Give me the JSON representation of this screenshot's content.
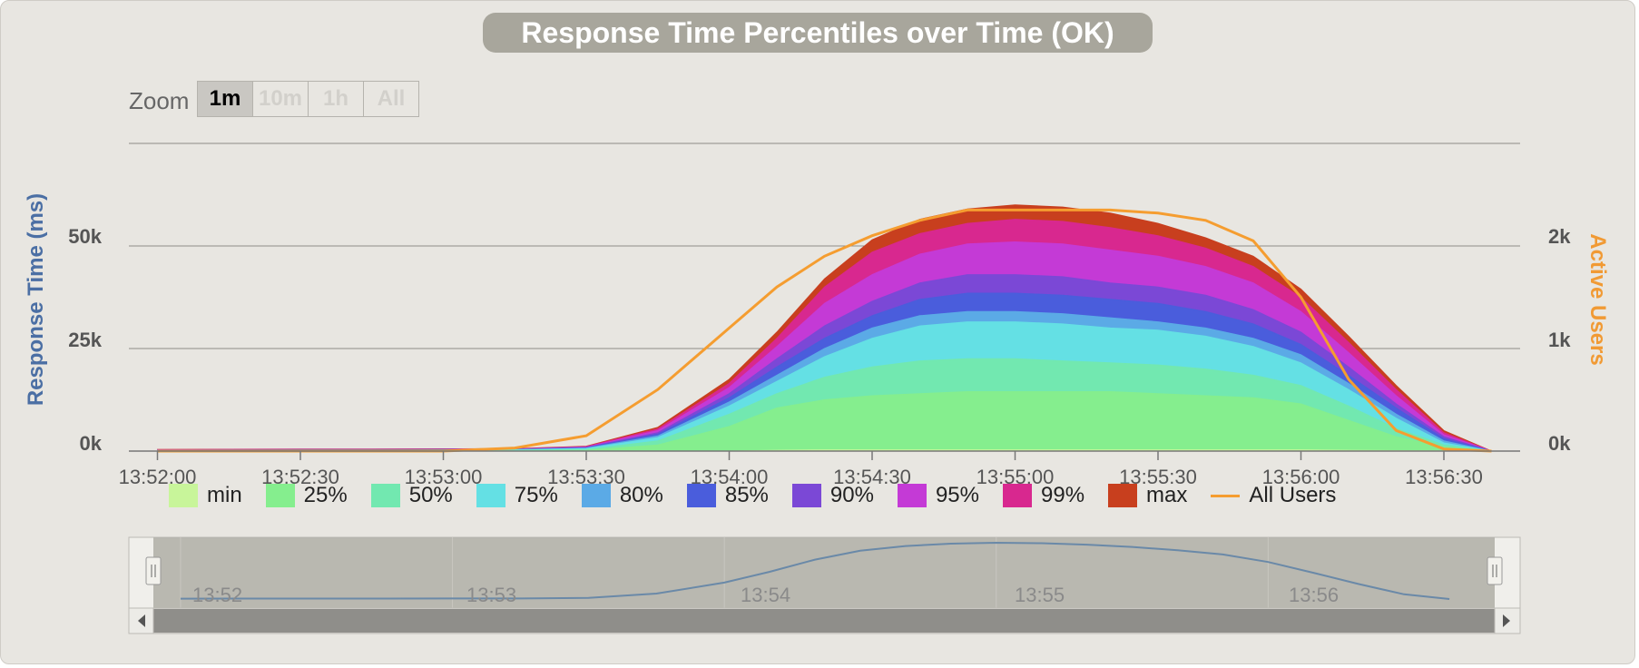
{
  "title": "Response Time Percentiles over Time (OK)",
  "zoom": {
    "label": "Zoom",
    "buttons": [
      "1m",
      "10m",
      "1h",
      "All"
    ],
    "active": "1m"
  },
  "axes": {
    "y_left_title": "Response Time (ms)",
    "y_right_title": "Active Users",
    "y_left_ticks": [
      "0k",
      "25k",
      "50k"
    ],
    "y_right_ticks": [
      "0k",
      "1k",
      "2k"
    ]
  },
  "navigator": {
    "labels": [
      "13:52",
      "13:53",
      "13:54",
      "13:55",
      "13:56"
    ]
  },
  "chart_data": {
    "type": "area",
    "title": "Response Time Percentiles over Time (OK)",
    "ylabel": "Response Time (ms)",
    "y2label": "Active Users",
    "ylim": [
      0,
      75000
    ],
    "y2lim": [
      0,
      3000
    ],
    "grid": true,
    "legend_position": "bottom",
    "x": [
      "13:52:00",
      "13:52:15",
      "13:52:30",
      "13:52:45",
      "13:53:00",
      "13:53:15",
      "13:53:30",
      "13:53:45",
      "13:54:00",
      "13:54:10",
      "13:54:20",
      "13:54:30",
      "13:54:40",
      "13:54:50",
      "13:55:00",
      "13:55:10",
      "13:55:20",
      "13:55:30",
      "13:55:40",
      "13:55:50",
      "13:56:00",
      "13:56:10",
      "13:56:20",
      "13:56:30",
      "13:56:40"
    ],
    "x_ticks": [
      "13:52:00",
      "13:52:30",
      "13:53:00",
      "13:53:30",
      "13:54:00",
      "13:54:30",
      "13:55:00",
      "13:55:30",
      "13:56:00",
      "13:56:30"
    ],
    "series": [
      {
        "name": "min",
        "color": "#c8f59a",
        "values": [
          0,
          0,
          0,
          0,
          0,
          0,
          0,
          0,
          0,
          200,
          300,
          300,
          300,
          300,
          300,
          300,
          300,
          300,
          300,
          300,
          300,
          200,
          100,
          50,
          0
        ]
      },
      {
        "name": "25%",
        "color": "#85ee8e",
        "values": [
          0,
          0,
          0,
          0,
          0,
          0,
          200,
          1500,
          6000,
          10500,
          12500,
          13500,
          14000,
          14500,
          14500,
          14500,
          14500,
          14000,
          13500,
          13000,
          11500,
          7500,
          3500,
          1000,
          0
        ]
      },
      {
        "name": "50%",
        "color": "#72e8b0",
        "values": [
          50,
          80,
          100,
          100,
          150,
          200,
          400,
          2500,
          9000,
          14000,
          18000,
          20500,
          22000,
          22500,
          22500,
          22000,
          21500,
          21000,
          20000,
          18500,
          16000,
          11000,
          5500,
          1500,
          0
        ]
      },
      {
        "name": "75%",
        "color": "#64e0e4",
        "values": [
          100,
          150,
          200,
          200,
          250,
          300,
          600,
          3300,
          11000,
          17000,
          23000,
          27500,
          30500,
          31500,
          31500,
          31000,
          30000,
          29500,
          28000,
          25500,
          21500,
          15000,
          8000,
          2000,
          0
        ]
      },
      {
        "name": "80%",
        "color": "#5baae6",
        "values": [
          150,
          200,
          250,
          250,
          300,
          350,
          700,
          3700,
          12000,
          18500,
          25000,
          30000,
          33000,
          34000,
          34000,
          33500,
          32500,
          31500,
          30000,
          27500,
          23500,
          16500,
          9000,
          2500,
          0
        ]
      },
      {
        "name": "85%",
        "color": "#4a5ddc",
        "values": [
          200,
          250,
          300,
          300,
          350,
          400,
          800,
          4100,
          13000,
          20500,
          27500,
          33000,
          37000,
          38500,
          38500,
          38000,
          37000,
          36000,
          34000,
          31000,
          26000,
          18500,
          10500,
          3000,
          0
        ]
      },
      {
        "name": "90%",
        "color": "#7b48d6",
        "values": [
          250,
          300,
          350,
          350,
          400,
          450,
          900,
          4500,
          14000,
          22500,
          30500,
          36500,
          41000,
          43000,
          43000,
          42500,
          41000,
          40000,
          38000,
          34500,
          29000,
          20500,
          11500,
          3500,
          0
        ]
      },
      {
        "name": "95%",
        "color": "#c43ad6",
        "values": [
          300,
          350,
          400,
          400,
          450,
          500,
          1000,
          5000,
          15500,
          25500,
          36000,
          43000,
          48000,
          50500,
          51000,
          50500,
          49000,
          47500,
          45000,
          41000,
          34000,
          24000,
          13500,
          4000,
          0
        ]
      },
      {
        "name": "99%",
        "color": "#d8288f",
        "values": [
          350,
          400,
          450,
          450,
          500,
          550,
          1100,
          5400,
          16500,
          27500,
          40000,
          48500,
          53000,
          55500,
          56500,
          56000,
          54500,
          52500,
          49500,
          45000,
          37500,
          26500,
          15000,
          4500,
          0
        ]
      },
      {
        "name": "max",
        "color": "#c83f1e",
        "values": [
          400,
          450,
          500,
          500,
          550,
          600,
          1200,
          5800,
          17500,
          29000,
          42000,
          51500,
          56500,
          59000,
          60000,
          59500,
          58000,
          55500,
          52000,
          47500,
          39500,
          28000,
          16000,
          5000,
          0
        ]
      }
    ],
    "lines": [
      {
        "name": "All Users",
        "color": "#f59d30",
        "axis": "right",
        "values": [
          0,
          0,
          0,
          0,
          0,
          30,
          150,
          600,
          1200,
          1600,
          1900,
          2100,
          2250,
          2350,
          2350,
          2350,
          2350,
          2320,
          2250,
          2050,
          1500,
          700,
          200,
          20,
          0
        ]
      }
    ]
  }
}
